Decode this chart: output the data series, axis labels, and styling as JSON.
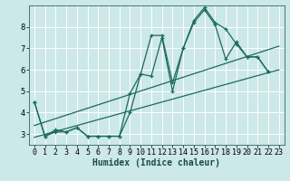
{
  "background_color": "#cce8e8",
  "grid_color": "#ffffff",
  "line_color": "#1a6b5a",
  "xlabel": "Humidex (Indice chaleur)",
  "xlabel_fontsize": 7,
  "tick_fontsize": 6,
  "xlim": [
    -0.5,
    23.5
  ],
  "ylim": [
    2.5,
    9.0
  ],
  "yticks": [
    3,
    4,
    5,
    6,
    7,
    8
  ],
  "xticks": [
    0,
    1,
    2,
    3,
    4,
    5,
    6,
    7,
    8,
    9,
    10,
    11,
    12,
    13,
    14,
    15,
    16,
    17,
    18,
    19,
    20,
    21,
    22,
    23
  ],
  "series1_x": [
    0,
    1,
    2,
    3,
    4,
    5,
    6,
    7,
    8,
    9,
    10,
    11,
    12,
    13,
    14,
    15,
    16,
    17,
    18,
    19,
    20,
    21,
    22
  ],
  "series1_y": [
    4.5,
    2.9,
    3.1,
    3.1,
    3.3,
    2.9,
    2.9,
    2.9,
    2.9,
    4.9,
    5.8,
    7.6,
    7.6,
    5.4,
    7.0,
    8.2,
    8.8,
    8.1,
    6.5,
    7.3,
    6.6,
    6.6,
    5.9
  ],
  "series2_x": [
    0,
    1,
    2,
    3,
    4,
    5,
    6,
    7,
    8,
    9,
    10,
    11,
    12,
    13,
    14,
    15,
    16,
    17,
    18,
    19,
    20,
    21,
    22
  ],
  "series2_y": [
    4.5,
    2.9,
    3.2,
    3.1,
    3.3,
    2.9,
    2.9,
    2.9,
    2.9,
    4.0,
    5.8,
    5.7,
    7.5,
    5.0,
    7.0,
    8.3,
    8.9,
    8.2,
    7.9,
    7.2,
    6.6,
    6.6,
    5.9
  ],
  "trend1_x": [
    0,
    23
  ],
  "trend1_y": [
    2.85,
    6.0
  ],
  "trend2_x": [
    0,
    23
  ],
  "trend2_y": [
    3.4,
    7.1
  ]
}
